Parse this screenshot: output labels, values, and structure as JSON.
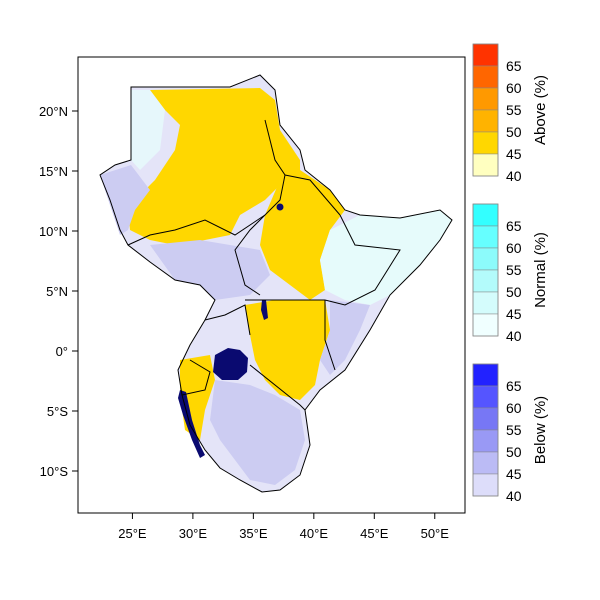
{
  "map": {
    "axes": {
      "lon_ticks": [
        {
          "value": 25,
          "label": "25°E"
        },
        {
          "value": 30,
          "label": "30°E"
        },
        {
          "value": 35,
          "label": "35°E"
        },
        {
          "value": 40,
          "label": "40°E"
        },
        {
          "value": 45,
          "label": "45°E"
        },
        {
          "value": 50,
          "label": "50°E"
        }
      ],
      "lat_ticks": [
        {
          "value": 20,
          "label": "20°N"
        },
        {
          "value": 15,
          "label": "15°N"
        },
        {
          "value": 10,
          "label": "10°N"
        },
        {
          "value": 5,
          "label": "5°N"
        },
        {
          "value": 0,
          "label": "0°"
        },
        {
          "value": -5,
          "label": "5°S"
        },
        {
          "value": -10,
          "label": "10°S"
        }
      ],
      "lon_range": [
        20.5,
        52.5
      ],
      "lat_range": [
        -13.5,
        24.5
      ]
    },
    "colors": {
      "above_dominant": "#ffd700",
      "above_light": "#ffffc0",
      "normal_light": "#e6fbfb",
      "below_light": "#ccccf5",
      "lake": "#0a0a70"
    },
    "legends": [
      {
        "title": "Above (%)",
        "labels": [
          "65",
          "60",
          "55",
          "50",
          "45",
          "40"
        ],
        "colors": [
          "#ff3300",
          "#ff6600",
          "#ff9900",
          "#ffb300",
          "#ffd700",
          "#ffffc0"
        ]
      },
      {
        "title": "Normal (%)",
        "labels": [
          "65",
          "60",
          "55",
          "50",
          "45",
          "40"
        ],
        "colors": [
          "#33ffff",
          "#66ffff",
          "#8cfbfb",
          "#b3fbfb",
          "#d4fcfc",
          "#f0ffff"
        ]
      },
      {
        "title": "Below (%)",
        "labels": [
          "65",
          "60",
          "55",
          "50",
          "45",
          "40"
        ],
        "colors": [
          "#2222ff",
          "#5555ff",
          "#7777f5",
          "#9999f5",
          "#bbbbf5",
          "#ddddfa"
        ]
      }
    ]
  }
}
